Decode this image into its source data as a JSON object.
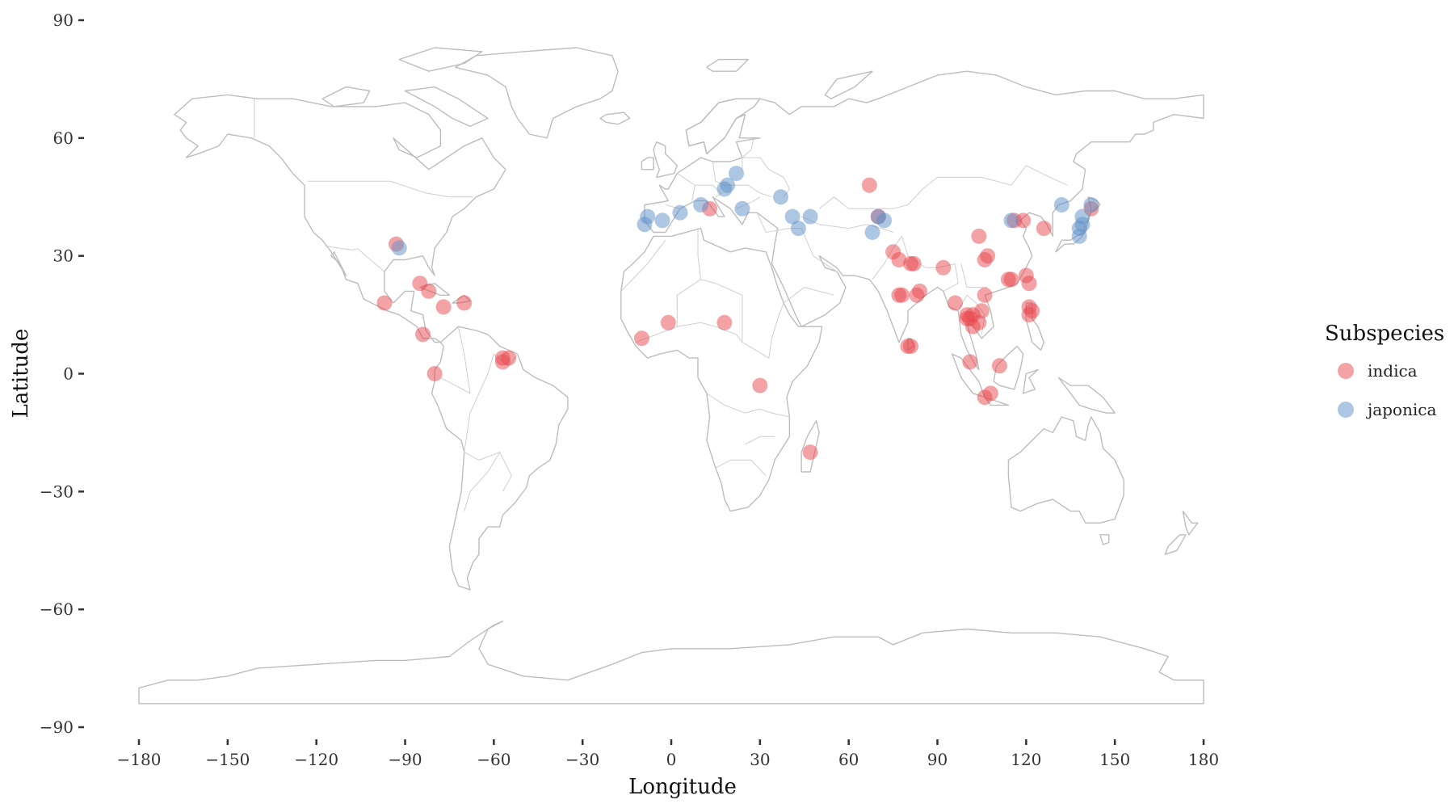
{
  "chart_data": {
    "type": "scatter",
    "title": "",
    "xlabel": "Longitude",
    "ylabel": "Latitude",
    "xlim": [
      -180,
      180
    ],
    "ylim": [
      -90,
      90
    ],
    "x_ticks": [
      -180,
      -150,
      -120,
      -90,
      -60,
      -30,
      0,
      30,
      60,
      90,
      120,
      150,
      180
    ],
    "y_ticks": [
      90,
      60,
      30,
      0,
      -30,
      -60,
      -90
    ],
    "grid": false,
    "basemap": "world-country-outlines",
    "legend": {
      "title": "Subspecies",
      "position": "right",
      "entries": [
        "indica",
        "japonica"
      ]
    },
    "series": [
      {
        "name": "indica",
        "color": "#e8474e",
        "points": [
          [
            -93,
            33
          ],
          [
            -85,
            23
          ],
          [
            -82,
            21
          ],
          [
            -97,
            18
          ],
          [
            -77,
            17
          ],
          [
            -70,
            18
          ],
          [
            -84,
            10
          ],
          [
            -80,
            0
          ],
          [
            -57,
            4
          ],
          [
            -55,
            4
          ],
          [
            -57,
            3
          ],
          [
            -10,
            9
          ],
          [
            -1,
            13
          ],
          [
            18,
            13
          ],
          [
            30,
            -3
          ],
          [
            47,
            -20
          ],
          [
            13,
            42
          ],
          [
            67,
            48
          ],
          [
            70,
            40
          ],
          [
            75,
            31
          ],
          [
            77,
            29
          ],
          [
            77,
            20
          ],
          [
            78,
            20
          ],
          [
            81,
            28
          ],
          [
            82,
            28
          ],
          [
            83,
            20
          ],
          [
            84,
            21
          ],
          [
            80,
            7
          ],
          [
            81,
            7
          ],
          [
            92,
            27
          ],
          [
            96,
            18
          ],
          [
            100,
            15
          ],
          [
            101,
            14
          ],
          [
            102,
            12
          ],
          [
            104,
            13
          ],
          [
            105,
            16
          ],
          [
            106,
            20
          ],
          [
            104,
            35
          ],
          [
            106,
            29
          ],
          [
            107,
            30
          ],
          [
            101,
            3
          ],
          [
            106,
            -6
          ],
          [
            108,
            -5
          ],
          [
            111,
            2
          ],
          [
            114,
            24
          ],
          [
            115,
            24
          ],
          [
            116,
            39
          ],
          [
            119,
            39
          ],
          [
            120,
            25
          ],
          [
            121,
            23
          ],
          [
            121,
            17
          ],
          [
            121,
            15
          ],
          [
            122,
            16
          ],
          [
            126,
            37
          ],
          [
            142,
            42
          ],
          [
            100,
            14
          ],
          [
            102,
            15
          ]
        ]
      },
      {
        "name": "japonica",
        "color": "#5b8fc7",
        "points": [
          [
            -92,
            32
          ],
          [
            -9,
            38
          ],
          [
            -8,
            40
          ],
          [
            -3,
            39
          ],
          [
            3,
            41
          ],
          [
            10,
            43
          ],
          [
            18,
            47
          ],
          [
            19,
            48
          ],
          [
            22,
            51
          ],
          [
            24,
            42
          ],
          [
            37,
            45
          ],
          [
            41,
            40
          ],
          [
            43,
            37
          ],
          [
            47,
            40
          ],
          [
            68,
            36
          ],
          [
            70,
            40
          ],
          [
            72,
            39
          ],
          [
            115,
            39
          ],
          [
            132,
            43
          ],
          [
            138,
            35
          ],
          [
            138,
            37
          ],
          [
            139,
            38
          ],
          [
            139,
            40
          ],
          [
            142,
            43
          ]
        ]
      }
    ]
  }
}
